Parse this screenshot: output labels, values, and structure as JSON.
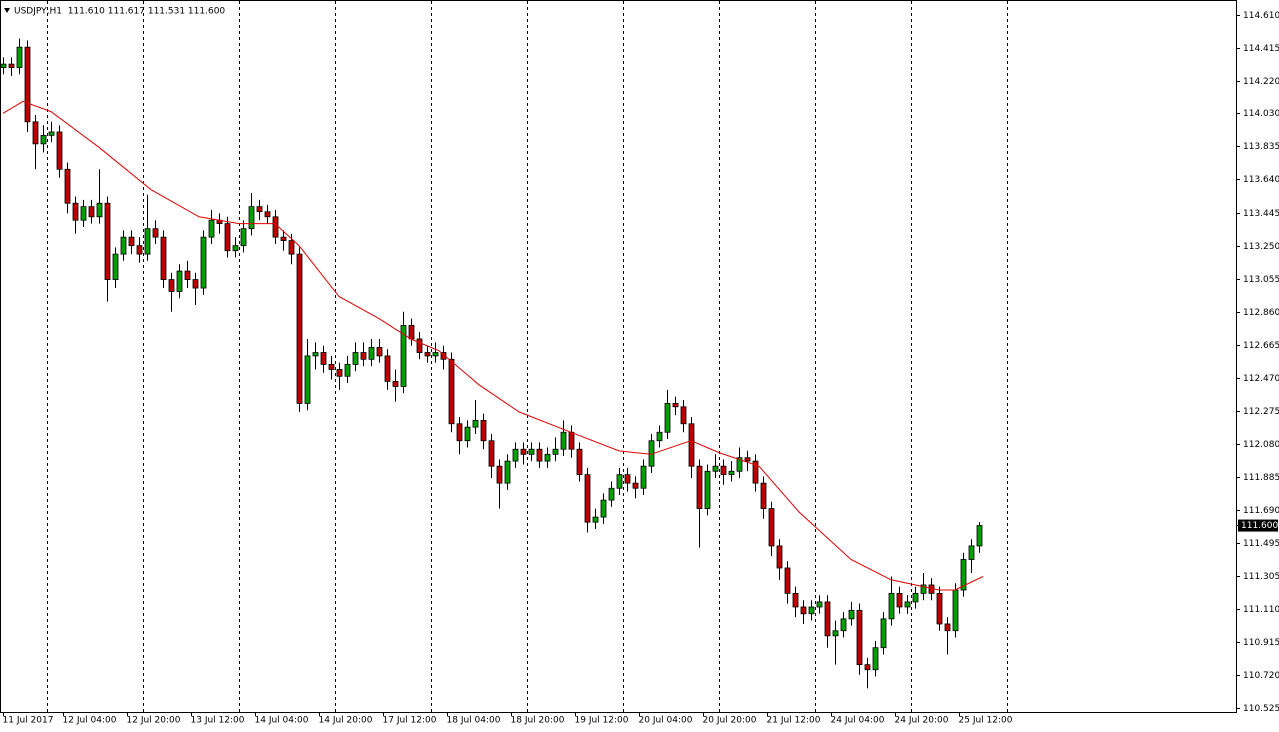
{
  "chart_data": {
    "type": "candlestick",
    "title": "USDJPY,H1  111.610 111.617 111.531 111.600",
    "x": [
      0,
      2,
      4,
      6,
      8,
      10,
      12,
      14,
      16,
      18,
      20,
      22,
      24,
      26,
      28,
      30,
      32,
      34,
      36,
      38,
      40,
      42,
      44,
      46,
      48,
      50,
      52,
      54,
      56,
      58,
      60,
      62,
      64,
      66,
      68,
      70,
      72,
      74,
      76,
      78,
      80,
      82,
      84,
      86,
      88,
      90,
      92,
      94,
      96,
      98,
      100,
      102,
      104,
      106,
      108,
      110,
      112,
      114,
      116,
      118,
      120,
      122,
      124,
      126,
      128,
      130,
      132,
      134,
      136,
      138,
      140,
      142,
      144,
      146,
      148,
      150,
      152,
      154,
      156,
      158,
      160,
      162,
      164,
      166,
      168,
      170,
      172,
      174,
      176,
      178,
      180,
      182,
      184,
      186,
      188,
      190,
      192,
      194,
      196,
      198,
      200,
      202,
      204,
      206,
      208,
      210,
      212,
      214,
      216,
      218,
      220,
      222,
      224,
      226,
      228,
      230,
      232,
      234,
      236,
      238,
      240,
      242,
      244
    ],
    "open": [
      114.3,
      114.32,
      114.3,
      114.42,
      113.98,
      113.85,
      113.9,
      113.92,
      113.7,
      113.5,
      113.4,
      113.48,
      113.42,
      113.5,
      113.05,
      113.2,
      113.3,
      113.25,
      113.2,
      113.35,
      113.3,
      113.05,
      112.98,
      113.1,
      113.05,
      113.0,
      113.3,
      113.4,
      113.38,
      113.22,
      113.25,
      113.35,
      113.48,
      113.45,
      113.42,
      113.3,
      113.28,
      113.2,
      112.32,
      112.6,
      112.62,
      112.55,
      112.52,
      112.48,
      112.55,
      112.62,
      112.58,
      112.65,
      112.6,
      112.45,
      112.42,
      112.78,
      112.7,
      112.62,
      112.6,
      112.62,
      112.58,
      112.2,
      112.1,
      112.18,
      112.22,
      112.1,
      111.95,
      111.85,
      111.98,
      112.05,
      112.02,
      112.05,
      111.98,
      112.02,
      112.05,
      112.15,
      112.05,
      111.9,
      111.62,
      111.65,
      111.75,
      111.82,
      111.9,
      111.85,
      111.82,
      111.95,
      112.1,
      112.15,
      112.32,
      112.3,
      112.2,
      111.95,
      111.7,
      111.92,
      111.95,
      111.9,
      111.92,
      112.0,
      111.98,
      111.85,
      111.7,
      111.48,
      111.35,
      111.2,
      111.12,
      111.08,
      111.12,
      111.15,
      110.95,
      110.98,
      111.05,
      111.1,
      110.78,
      110.75,
      110.88,
      111.05,
      111.2,
      111.12,
      111.15,
      111.2,
      111.25,
      111.2,
      111.02,
      110.98,
      111.22,
      111.4,
      111.48
    ],
    "high": [
      114.36,
      114.36,
      114.47,
      114.46,
      114.02,
      113.96,
      113.98,
      113.96,
      113.74,
      113.54,
      113.52,
      113.52,
      113.7,
      113.54,
      113.24,
      113.34,
      113.34,
      113.3,
      113.55,
      113.4,
      113.34,
      113.09,
      113.14,
      113.16,
      113.09,
      113.34,
      113.46,
      113.44,
      113.42,
      113.3,
      113.4,
      113.56,
      113.52,
      113.49,
      113.46,
      113.34,
      113.32,
      113.24,
      112.7,
      112.68,
      112.66,
      112.6,
      112.56,
      112.6,
      112.68,
      112.68,
      112.7,
      112.7,
      112.64,
      112.52,
      112.86,
      112.82,
      112.74,
      112.66,
      112.68,
      112.66,
      112.62,
      112.24,
      112.22,
      112.34,
      112.26,
      112.14,
      111.99,
      112.02,
      112.09,
      112.09,
      112.09,
      112.09,
      112.06,
      112.12,
      112.22,
      112.19,
      112.09,
      111.94,
      111.7,
      111.79,
      111.86,
      111.94,
      111.94,
      111.89,
      111.99,
      112.14,
      112.19,
      112.4,
      112.36,
      112.34,
      112.24,
      111.99,
      111.96,
      112.02,
      111.99,
      111.98,
      112.06,
      112.04,
      112.02,
      111.89,
      111.74,
      111.52,
      111.39,
      111.24,
      111.16,
      111.16,
      111.19,
      111.19,
      111.04,
      111.09,
      111.15,
      111.14,
      110.82,
      110.92,
      111.09,
      111.3,
      111.24,
      111.19,
      111.24,
      111.32,
      111.29,
      111.24,
      111.06,
      111.26,
      111.44,
      111.52,
      111.62
    ],
    "low": [
      114.26,
      114.25,
      114.26,
      113.92,
      113.7,
      113.8,
      113.86,
      113.65,
      113.44,
      113.32,
      113.36,
      113.38,
      113.38,
      112.92,
      113.0,
      113.16,
      113.2,
      113.15,
      113.16,
      113.26,
      113.0,
      112.86,
      112.94,
      113.0,
      112.9,
      112.96,
      113.26,
      113.32,
      113.18,
      113.18,
      113.21,
      113.31,
      113.4,
      113.38,
      113.26,
      113.22,
      113.14,
      112.27,
      112.28,
      112.52,
      112.5,
      112.46,
      112.4,
      112.44,
      112.51,
      112.54,
      112.54,
      112.56,
      112.4,
      112.33,
      112.38,
      112.66,
      112.58,
      112.56,
      112.56,
      112.52,
      112.15,
      112.02,
      112.06,
      112.14,
      112.05,
      111.88,
      111.7,
      111.81,
      111.94,
      111.96,
      111.98,
      111.94,
      111.94,
      111.98,
      112.01,
      112.0,
      111.86,
      111.56,
      111.58,
      111.61,
      111.71,
      111.78,
      111.8,
      111.76,
      111.78,
      111.91,
      112.06,
      112.11,
      112.25,
      112.15,
      111.88,
      111.47,
      111.66,
      111.88,
      111.84,
      111.86,
      111.88,
      111.92,
      111.8,
      111.64,
      111.42,
      111.28,
      111.14,
      111.06,
      111.02,
      111.04,
      111.08,
      110.88,
      110.78,
      110.94,
      111.01,
      110.72,
      110.64,
      110.71,
      110.84,
      111.01,
      111.08,
      111.08,
      111.11,
      111.16,
      111.16,
      110.98,
      110.84,
      110.94,
      111.18,
      111.32,
      111.44
    ],
    "close": [
      114.32,
      114.3,
      114.42,
      113.98,
      113.85,
      113.9,
      113.92,
      113.7,
      113.5,
      113.4,
      113.48,
      113.42,
      113.5,
      113.05,
      113.2,
      113.3,
      113.25,
      113.2,
      113.35,
      113.3,
      113.05,
      112.98,
      113.1,
      113.05,
      113.0,
      113.3,
      113.4,
      113.38,
      113.22,
      113.25,
      113.35,
      113.48,
      113.45,
      113.42,
      113.3,
      113.28,
      113.2,
      112.32,
      112.6,
      112.62,
      112.55,
      112.52,
      112.48,
      112.55,
      112.62,
      112.58,
      112.65,
      112.6,
      112.45,
      112.42,
      112.78,
      112.7,
      112.62,
      112.6,
      112.62,
      112.58,
      112.2,
      112.1,
      112.18,
      112.22,
      112.1,
      111.95,
      111.85,
      111.98,
      112.05,
      112.02,
      112.05,
      111.98,
      112.02,
      112.05,
      112.15,
      112.05,
      111.9,
      111.62,
      111.65,
      111.75,
      111.82,
      111.9,
      111.85,
      111.82,
      111.95,
      112.1,
      112.15,
      112.32,
      112.3,
      112.2,
      111.95,
      111.7,
      111.92,
      111.95,
      111.9,
      111.92,
      112.0,
      111.98,
      111.85,
      111.7,
      111.48,
      111.35,
      111.2,
      111.12,
      111.08,
      111.12,
      111.15,
      110.95,
      110.98,
      111.05,
      111.1,
      110.78,
      110.75,
      110.88,
      111.05,
      111.2,
      111.12,
      111.15,
      111.2,
      111.25,
      111.2,
      111.02,
      110.98,
      111.22,
      111.4,
      111.48,
      111.6
    ],
    "up_color": "#00a000",
    "down_color": "#c00000",
    "wick_color": "#000000",
    "ma": {
      "color": "#e00000",
      "x": [
        0,
        5,
        12,
        24,
        37,
        49,
        59,
        68,
        74,
        84,
        94,
        102,
        109,
        119,
        129,
        142,
        154,
        162,
        172,
        179,
        189,
        199,
        212,
        222,
        234,
        238,
        245
      ],
      "values": [
        114.03,
        114.1,
        114.04,
        113.83,
        113.58,
        113.42,
        113.38,
        113.38,
        113.25,
        112.95,
        112.82,
        112.7,
        112.63,
        112.43,
        112.27,
        112.15,
        112.04,
        112.02,
        112.1,
        112.03,
        111.95,
        111.68,
        111.4,
        111.28,
        111.22,
        111.22,
        111.3
      ]
    },
    "xlim": [
      -0.75,
      308.25
    ],
    "ylim": [
      110.501,
      114.698
    ],
    "yticks": [
      {
        "value": 114.61,
        "label": "114.610"
      },
      114.415,
      {
        "value": 114.22,
        "label": "114.220"
      },
      {
        "value": 114.03,
        "label": "114.030"
      },
      113.835,
      {
        "value": 113.64,
        "label": "113.640"
      },
      113.445,
      {
        "value": 113.25,
        "label": "113.250"
      },
      113.055,
      {
        "value": 112.86,
        "label": "112.860"
      },
      112.665,
      {
        "value": 112.47,
        "label": "112.470"
      },
      112.275,
      {
        "value": 112.08,
        "label": "112.080"
      },
      111.885,
      {
        "value": 111.69,
        "label": "111.690"
      },
      111.495,
      111.305,
      {
        "value": 111.11,
        "label": "111.110"
      },
      110.915,
      {
        "value": 110.72,
        "label": "110.720"
      },
      110.525
    ],
    "xticks": [
      {
        "value": 0,
        "label": "11 Jul 2017"
      },
      {
        "value": 15,
        "label": "12 Jul 04:00"
      },
      {
        "value": 31,
        "label": "12 Jul 20:00"
      },
      {
        "value": 47,
        "label": "13 Jul 12:00"
      },
      {
        "value": 63,
        "label": "14 Jul 04:00"
      },
      {
        "value": 79,
        "label": "14 Jul 20:00"
      },
      {
        "value": 95,
        "label": "17 Jul 12:00"
      },
      {
        "value": 111,
        "label": "18 Jul 04:00"
      },
      {
        "value": 127,
        "label": "18 Jul 20:00"
      },
      {
        "value": 143,
        "label": "19 Jul 12:00"
      },
      {
        "value": 159,
        "label": "20 Jul 04:00"
      },
      {
        "value": 175,
        "label": "20 Jul 20:00"
      },
      {
        "value": 191,
        "label": "21 Jul 12:00"
      },
      {
        "value": 207,
        "label": "24 Jul 04:00"
      },
      {
        "value": 223,
        "label": "24 Jul 20:00"
      },
      {
        "value": 239,
        "label": "25 Jul 12:00"
      }
    ],
    "period_separators": [
      11,
      35,
      59,
      83,
      107,
      131,
      155,
      179,
      203,
      227,
      251
    ],
    "last_price": {
      "value": 111.6,
      "label": "111.600"
    }
  }
}
